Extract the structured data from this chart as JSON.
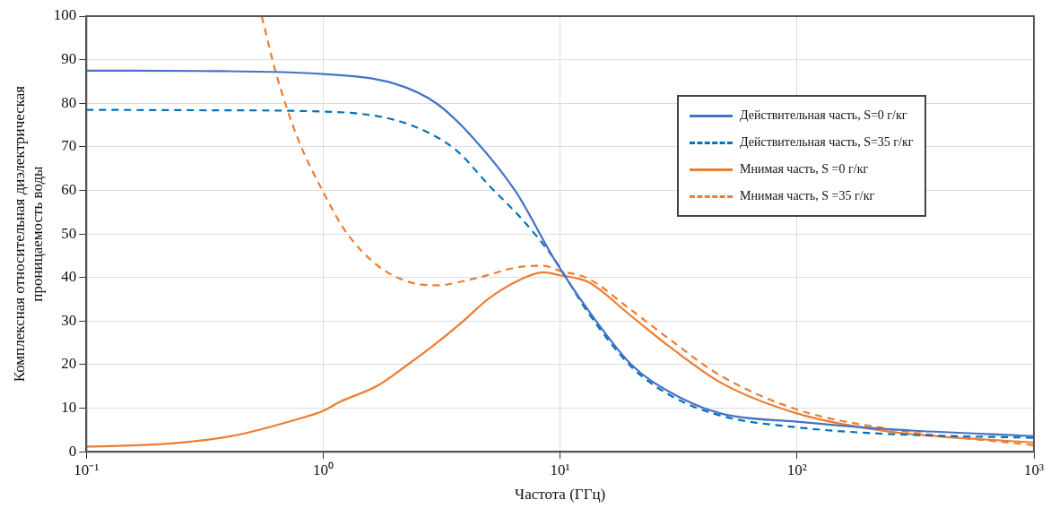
{
  "chart_data": {
    "type": "line",
    "xlabel": "Частота (ГГц)",
    "ylabel": "Комплексная относительная диэлектрическая проницаемость воды",
    "log": "x",
    "grid": true,
    "legend": "top right",
    "marker": "none",
    "xlim": [
      0.1,
      1000
    ],
    "xticks": [
      {
        "value": 0.1,
        "label": "10⁻¹"
      },
      {
        "value": 1,
        "label": "10⁰"
      },
      {
        "value": 10,
        "label": "10¹"
      },
      {
        "value": 100,
        "label": "10²"
      },
      {
        "value": 1000,
        "label": "10³"
      }
    ],
    "ylim": [
      0,
      100
    ],
    "yticks": [
      0,
      10,
      20,
      30,
      40,
      50,
      60,
      70,
      80,
      90,
      100
    ],
    "series": [
      {
        "name": "Действительная часть, S=0 г/кг",
        "color": "#4472c4",
        "line_style": "solid",
        "x": [
          0.1,
          0.3,
          1,
          2,
          3,
          4.3,
          6.5,
          9.4,
          13.1,
          20,
          29.5,
          47.5,
          100,
          240,
          1000
        ],
        "values": [
          87.5,
          87.4,
          86.7,
          84.5,
          80,
          72,
          59.7,
          44.4,
          32.6,
          20,
          13.5,
          8.8,
          6.9,
          5.2,
          3.6
        ]
      },
      {
        "name": "Действительная часть, S=35 г/кг",
        "color": "#0072bd",
        "line_style": "dashed",
        "x": [
          0.1,
          0.3,
          1,
          2,
          3,
          3.7,
          5,
          6.9,
          9.4,
          13.1,
          20,
          29.5,
          47.5,
          100,
          240,
          1000
        ],
        "values": [
          78.5,
          78.4,
          78.1,
          76.2,
          72.3,
          68.9,
          61.2,
          53.4,
          44.4,
          32,
          19.5,
          12.8,
          8.3,
          5.6,
          4.1,
          3.2
        ]
      },
      {
        "name": "Мнимая часть, S =0 г/кг",
        "color": "#ed7d31",
        "line_style": "solid",
        "x": [
          0.1,
          0.2,
          0.41,
          0.78,
          1,
          1.17,
          1.7,
          2.3,
          3,
          3.9,
          5,
          6.9,
          8.5,
          10,
          13.1,
          20,
          29.5,
          47.5,
          100,
          240,
          1000
        ],
        "values": [
          1.2,
          1.7,
          3.6,
          7.5,
          9.4,
          11.4,
          15.2,
          20.2,
          24.9,
          30,
          35.2,
          39.7,
          41.2,
          40.5,
          39,
          31.1,
          23.8,
          15.9,
          8.8,
          4.7,
          2.1
        ]
      },
      {
        "name": "Мнимая часть, S =35 г/кг",
        "color": "#ed7d31",
        "line_style": "dashed",
        "x": [
          0.55,
          0.63,
          0.78,
          1,
          1.25,
          1.7,
          2.3,
          3,
          4.3,
          6.9,
          8.5,
          10,
          13.1,
          20,
          29.5,
          47.5,
          100,
          240,
          1000
        ],
        "values": [
          100,
          87.2,
          72,
          59.6,
          50.4,
          42.7,
          39,
          38.2,
          39.7,
          42.5,
          42.7,
          41.5,
          39.8,
          32.5,
          25.5,
          17.5,
          9.7,
          5.3,
          1.5
        ]
      }
    ]
  }
}
